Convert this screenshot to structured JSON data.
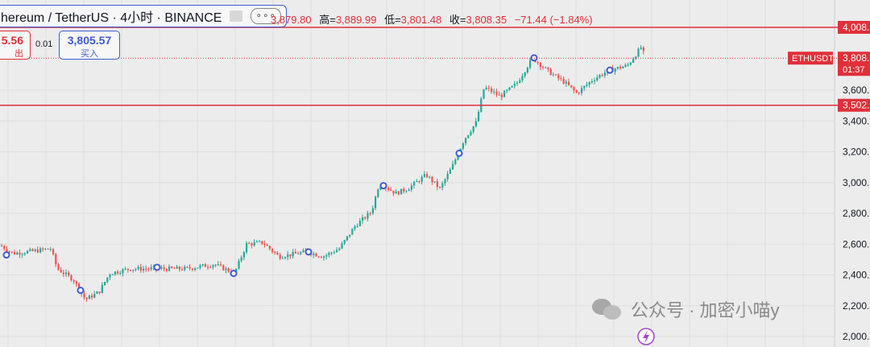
{
  "header": {
    "symbol_title": "hereum / TetherUS · 4小时 · BINANCE",
    "more": "∘∘∘",
    "ohlc_open": "3,879.80",
    "ohlc_high_label": "高=",
    "ohlc_high": "3,889.99",
    "ohlc_low_label": "低=",
    "ohlc_low": "3,801.48",
    "ohlc_close_label": "收=",
    "ohlc_close": "3,808.35",
    "change": "−71.44 (−1.84%)"
  },
  "trade": {
    "sell_price": "5.56",
    "sell_label": "出",
    "spread": "0.01",
    "buy_price": "3,805.57",
    "buy_label": "买入"
  },
  "price_axis": {
    "ticks": [
      "3,600.",
      "3,400.",
      "3,200.",
      "3,000.",
      "2,800.",
      "2,600.",
      "2,400.",
      "2,200.",
      "2,000."
    ],
    "line_high_label": "4,008.",
    "line_low_label": "3,502.",
    "symbol_badge": "ETHUSDT",
    "last_price": "3,808.",
    "countdown": "01:37"
  },
  "watermark": {
    "text": "公众号 · 加密小喵y"
  },
  "colors": {
    "up": "#26a69a",
    "down": "#ef5350",
    "hline": "#e0303a",
    "accent": "#3f5bd1",
    "background": "#ececec"
  },
  "chart_data": {
    "type": "candlestick",
    "symbol": "hereum / TetherUS",
    "interval": "4小时",
    "exchange": "BINANCE",
    "y_ticks": [
      3600,
      3400,
      3200,
      3000,
      2800,
      2600,
      2400,
      2200,
      2000
    ],
    "horizontal_lines": [
      4008,
      3502
    ],
    "last_price": 3808,
    "open": 3879.8,
    "high": 3889.99,
    "low": 3801.48,
    "close": 3808.35,
    "trend_path": [
      [
        0,
        2590
      ],
      [
        15,
        2540
      ],
      [
        40,
        2555
      ],
      [
        62,
        2570
      ],
      [
        70,
        2440
      ],
      [
        90,
        2370
      ],
      [
        105,
        2240
      ],
      [
        122,
        2290
      ],
      [
        135,
        2410
      ],
      [
        160,
        2440
      ],
      [
        200,
        2440
      ],
      [
        230,
        2440
      ],
      [
        265,
        2470
      ],
      [
        290,
        2410
      ],
      [
        305,
        2600
      ],
      [
        325,
        2610
      ],
      [
        345,
        2520
      ],
      [
        380,
        2550
      ],
      [
        400,
        2520
      ],
      [
        420,
        2570
      ],
      [
        440,
        2720
      ],
      [
        460,
        2810
      ],
      [
        470,
        3000
      ],
      [
        490,
        2930
      ],
      [
        505,
        2960
      ],
      [
        528,
        3050
      ],
      [
        545,
        2960
      ],
      [
        560,
        3100
      ],
      [
        575,
        3280
      ],
      [
        590,
        3390
      ],
      [
        600,
        3620
      ],
      [
        620,
        3560
      ],
      [
        640,
        3640
      ],
      [
        660,
        3810
      ],
      [
        680,
        3720
      ],
      [
        700,
        3650
      ],
      [
        715,
        3580
      ],
      [
        735,
        3670
      ],
      [
        755,
        3730
      ],
      [
        778,
        3760
      ],
      [
        795,
        3880
      ],
      [
        800,
        3808
      ]
    ],
    "markers": [
      [
        8,
        2530
      ],
      [
        100,
        2300
      ],
      [
        195,
        2450
      ],
      [
        290,
        2410
      ],
      [
        383,
        2550
      ],
      [
        476,
        2980
      ],
      [
        570,
        3190
      ],
      [
        663,
        3810
      ],
      [
        757,
        3730
      ]
    ]
  }
}
